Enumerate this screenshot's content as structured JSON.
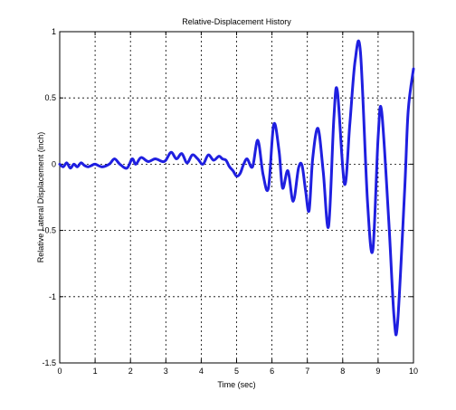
{
  "chart_data": {
    "type": "line",
    "title": "Relative-Displacement History",
    "xlabel": "Time (sec)",
    "ylabel": "Relative Lateral Displacement (inch)",
    "xlim": [
      0,
      10
    ],
    "ylim": [
      -1.5,
      1
    ],
    "xticks": [
      0,
      1,
      2,
      3,
      4,
      5,
      6,
      7,
      8,
      9,
      10
    ],
    "yticks": [
      -1.5,
      -1,
      -0.5,
      0,
      0.5,
      1
    ],
    "xtick_labels": [
      "0",
      "1",
      "2",
      "3",
      "4",
      "5",
      "6",
      "7",
      "8",
      "9",
      "10"
    ],
    "ytick_labels": [
      "-1.5",
      "-1",
      "-0.5",
      "0",
      "0.5",
      "1"
    ],
    "grid": true,
    "grid_style": "dotted",
    "colors": {
      "series": "#1f1fe0",
      "axes": "#000000",
      "grid": "#000000",
      "background": "#ffffff"
    },
    "series": [
      {
        "x": [
          0,
          0.1,
          0.2,
          0.3,
          0.4,
          0.5,
          0.6,
          0.7,
          0.8,
          0.9,
          1.0,
          1.2,
          1.4,
          1.55,
          1.7,
          1.9,
          2.05,
          2.15,
          2.3,
          2.5,
          2.7,
          2.9,
          3.0,
          3.15,
          3.3,
          3.45,
          3.6,
          3.75,
          3.9,
          4.05,
          4.2,
          4.35,
          4.5,
          4.6,
          4.7,
          4.8,
          4.9,
          5.0,
          5.1,
          5.2,
          5.3,
          5.45,
          5.6,
          5.75,
          5.9,
          6.05,
          6.2,
          6.3,
          6.45,
          6.6,
          6.75,
          6.85,
          6.95,
          7.05,
          7.15,
          7.3,
          7.45,
          7.6,
          7.75,
          7.85,
          8.05,
          8.2,
          8.35,
          8.5,
          8.7,
          8.85,
          9.0,
          9.1,
          9.3,
          9.45,
          9.55,
          9.75,
          9.85,
          10.0
        ],
        "y": [
          0.0,
          -0.02,
          0.01,
          -0.03,
          0.0,
          -0.02,
          0.01,
          -0.01,
          -0.02,
          -0.01,
          0.0,
          -0.02,
          0.0,
          0.04,
          0.0,
          -0.03,
          0.04,
          0.0,
          0.05,
          0.02,
          0.04,
          0.02,
          0.03,
          0.09,
          0.04,
          0.08,
          0.01,
          0.07,
          0.04,
          0.0,
          0.07,
          0.03,
          0.06,
          0.04,
          0.03,
          -0.02,
          -0.05,
          -0.09,
          -0.07,
          0.0,
          0.04,
          -0.02,
          0.18,
          -0.08,
          -0.18,
          0.3,
          0.1,
          -0.18,
          -0.05,
          -0.28,
          -0.03,
          -0.01,
          -0.2,
          -0.35,
          0.04,
          0.27,
          -0.06,
          -0.47,
          0.35,
          0.55,
          -0.15,
          0.3,
          0.78,
          0.85,
          -0.28,
          -0.65,
          0.2,
          0.4,
          -0.42,
          -1.15,
          -1.2,
          -0.2,
          0.4,
          0.72
        ]
      }
    ]
  }
}
